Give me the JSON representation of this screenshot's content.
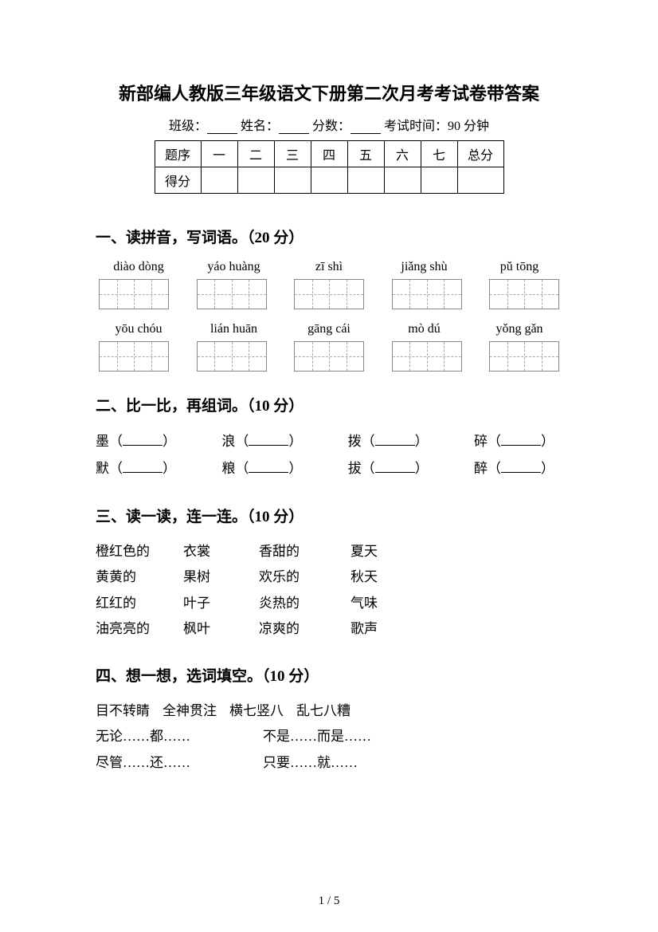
{
  "title": "新部编人教版三年级语文下册第二次月考考试卷带答案",
  "info": {
    "班级": "班级：",
    "姓名": "姓名：",
    "分数": "分数：",
    "考试时间": "考试时间：90 分钟"
  },
  "scoreTable": {
    "rowHeads": [
      "题序",
      "得分"
    ],
    "cols": [
      "一",
      "二",
      "三",
      "四",
      "五",
      "六",
      "七",
      "总分"
    ]
  },
  "section1": {
    "heading": "一、读拼音，写词语。（20 分）",
    "row1": [
      "diào dòng",
      "yáo huàng",
      "zī shì",
      "jiǎng shù",
      "pǔ tōng"
    ],
    "row2": [
      "yōu chóu",
      "lián huān",
      "gāng cái",
      "mò dú",
      "yǒng gǎn"
    ]
  },
  "section2": {
    "heading": "二、比一比，再组词。（10 分）",
    "rows": [
      [
        "墨",
        "浪",
        "拨",
        "碎"
      ],
      [
        "默",
        "粮",
        "拔",
        "醉"
      ]
    ]
  },
  "section3": {
    "heading": "三、读一读，连一连。（10 分）",
    "rows": [
      [
        "橙红色的",
        "衣裳",
        "香甜的",
        "夏天"
      ],
      [
        "黄黄的",
        "果树",
        "欢乐的",
        "秋天"
      ],
      [
        "红红的",
        "叶子",
        "炎热的",
        "气味"
      ],
      [
        "油亮亮的",
        "枫叶",
        "凉爽的",
        "歌声"
      ]
    ]
  },
  "section4": {
    "heading": "四、想一想，选词填空。（10 分）",
    "wordBank": [
      "目不转睛",
      "全神贯注",
      "横七竖八",
      "乱七八糟"
    ],
    "patterns": [
      [
        "无论……都……",
        "不是……而是……"
      ],
      [
        "尽管……还……",
        "只要……就……"
      ]
    ]
  },
  "pageNum": "1 / 5"
}
